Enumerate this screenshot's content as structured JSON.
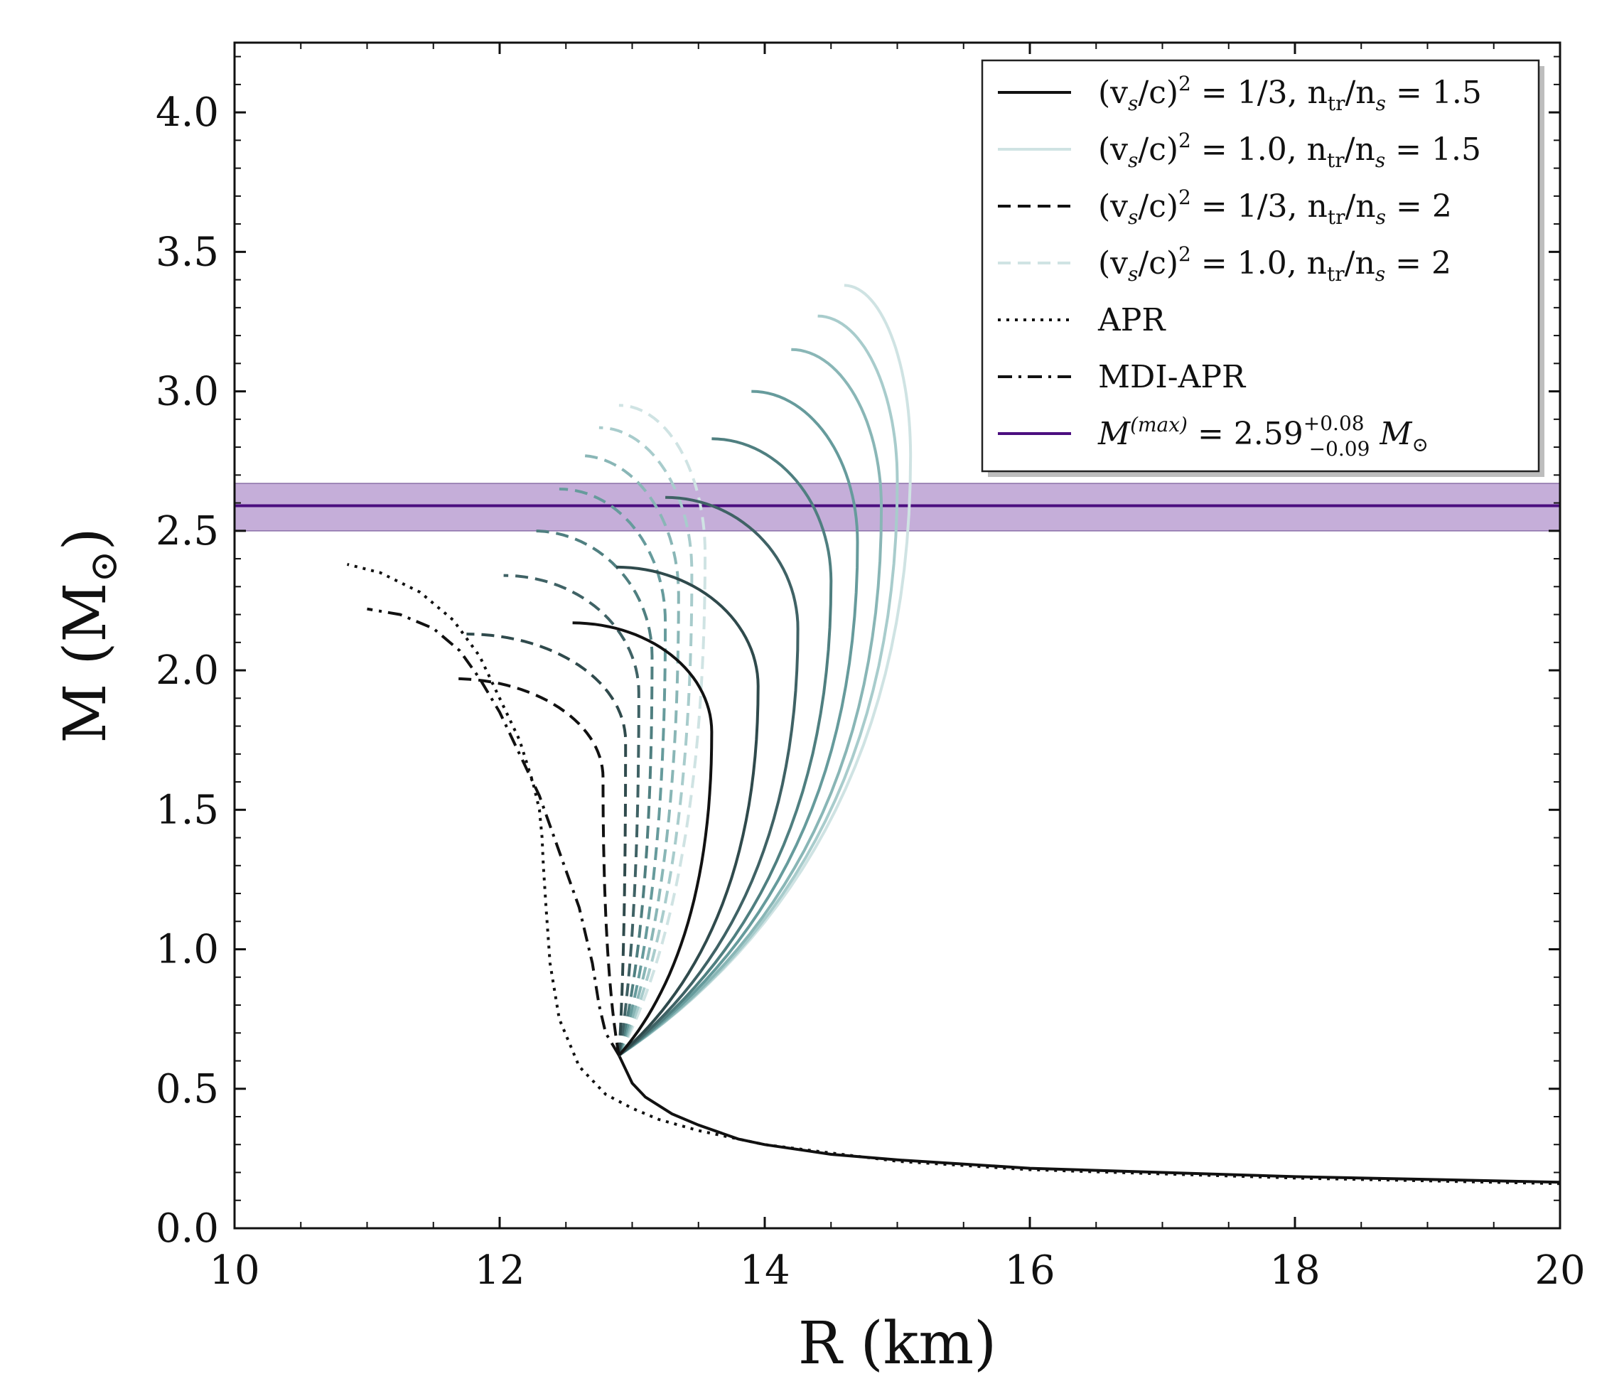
{
  "chart_data": {
    "type": "line",
    "xlabel": "R (km)",
    "ylabel": "M (M",
    "ylabel_sub": "⊙",
    "ylabel_close": ")",
    "xlim": [
      10,
      20
    ],
    "ylim": [
      0,
      4.25
    ],
    "xticks": [
      10,
      12,
      14,
      16,
      18,
      20
    ],
    "yticks": [
      0.0,
      0.5,
      1.0,
      1.5,
      2.0,
      2.5,
      3.0,
      3.5,
      4.0
    ],
    "xtick_labels": [
      "10",
      "12",
      "14",
      "16",
      "18",
      "20"
    ],
    "ytick_labels": [
      "0.0",
      "0.5",
      "1.0",
      "1.5",
      "2.0",
      "2.5",
      "3.0",
      "3.5",
      "4.0"
    ],
    "band": {
      "center": 2.59,
      "lower": 2.5,
      "upper": 2.67,
      "color": "#4b0e7f",
      "fill": "#c5aed9"
    },
    "crust": {
      "x": [
        20.0,
        18.0,
        16.0,
        15.0,
        14.5,
        14.0,
        13.8,
        13.5,
        13.3,
        13.1,
        13.0,
        12.95,
        12.9
      ],
      "y": [
        0.165,
        0.185,
        0.215,
        0.245,
        0.265,
        0.3,
        0.32,
        0.37,
        0.41,
        0.47,
        0.52,
        0.57,
        0.62
      ]
    },
    "families": [
      {
        "name": "(vs/c)^2=1/3, ntr/ns=1.5",
        "style": "solid",
        "color": "#111111",
        "Rturn": 13.6,
        "Rtop": 12.55,
        "Mmax": 2.17
      },
      {
        "name": "cs2-1.5-a",
        "style": "solid",
        "color": "#2f4a4c",
        "Rturn": 13.95,
        "Rtop": 12.88,
        "Mmax": 2.37
      },
      {
        "name": "cs2-1.5-b",
        "style": "solid",
        "color": "#3f6265",
        "Rturn": 14.25,
        "Rtop": 13.25,
        "Mmax": 2.62
      },
      {
        "name": "cs2-1.5-c",
        "style": "solid",
        "color": "#4f7f80",
        "Rturn": 14.5,
        "Rtop": 13.6,
        "Mmax": 2.83
      },
      {
        "name": "cs2-1.5-d",
        "style": "solid",
        "color": "#669b9c",
        "Rturn": 14.7,
        "Rtop": 13.9,
        "Mmax": 3.0
      },
      {
        "name": "cs2-1.5-e",
        "style": "solid",
        "color": "#89b6b6",
        "Rturn": 14.88,
        "Rtop": 14.2,
        "Mmax": 3.15
      },
      {
        "name": "cs2-1.5-f",
        "style": "solid",
        "color": "#a8cccc",
        "Rturn": 15.0,
        "Rtop": 14.4,
        "Mmax": 3.27
      },
      {
        "name": "(vs/c)^2=1.0, ntr/ns=1.5",
        "style": "solid",
        "color": "#cfe3e3",
        "Rturn": 15.1,
        "Rtop": 14.6,
        "Mmax": 3.38
      },
      {
        "name": "(vs/c)^2=1/3, ntr/ns=2",
        "style": "dashed",
        "color": "#111111",
        "Rturn": 12.78,
        "Rtop": 11.65,
        "Mmax": 1.97
      },
      {
        "name": "cs2-2-a",
        "style": "dashed",
        "color": "#2f4a4c",
        "Rturn": 12.95,
        "Rtop": 11.75,
        "Mmax": 2.13
      },
      {
        "name": "cs2-2-b",
        "style": "dashed",
        "color": "#3f6265",
        "Rturn": 13.05,
        "Rtop": 12.03,
        "Mmax": 2.34
      },
      {
        "name": "cs2-2-c",
        "style": "dashed",
        "color": "#4f7f80",
        "Rturn": 13.15,
        "Rtop": 12.25,
        "Mmax": 2.5
      },
      {
        "name": "cs2-2-d",
        "style": "dashed",
        "color": "#669b9c",
        "Rturn": 13.25,
        "Rtop": 12.45,
        "Mmax": 2.65
      },
      {
        "name": "cs2-2-e",
        "style": "dashed",
        "color": "#89b6b6",
        "Rturn": 13.35,
        "Rtop": 12.6,
        "Mmax": 2.77
      },
      {
        "name": "cs2-2-f",
        "style": "dashed",
        "color": "#a8cccc",
        "Rturn": 13.45,
        "Rtop": 12.75,
        "Mmax": 2.87
      },
      {
        "name": "(vs/c)^2=1.0, ntr/ns=2",
        "style": "dashed",
        "color": "#cfe3e3",
        "Rturn": 13.55,
        "Rtop": 12.9,
        "Mmax": 2.95
      }
    ],
    "apr": {
      "name": "APR",
      "style": "dotted",
      "color": "#111111",
      "x": [
        20.0,
        18.0,
        16.0,
        15.0,
        14.0,
        13.5,
        13.2,
        13.0,
        12.8,
        12.6,
        12.45,
        12.38,
        12.35,
        12.33,
        12.32,
        12.3,
        12.25,
        12.15,
        12.0,
        11.85,
        11.65,
        11.4,
        11.1,
        10.85
      ],
      "y": [
        0.16,
        0.18,
        0.21,
        0.24,
        0.3,
        0.35,
        0.39,
        0.43,
        0.48,
        0.58,
        0.75,
        0.95,
        1.15,
        1.3,
        1.4,
        1.5,
        1.6,
        1.75,
        1.9,
        2.05,
        2.18,
        2.28,
        2.35,
        2.38
      ]
    },
    "mdi": {
      "name": "MDI-APR",
      "style": "dashdot",
      "color": "#111111",
      "x": [
        12.9,
        12.8,
        12.75,
        12.7,
        12.6,
        12.45,
        12.3,
        12.15,
        12.0,
        11.85,
        11.7,
        11.5,
        11.25,
        11.0
      ],
      "y": [
        0.62,
        0.7,
        0.8,
        0.95,
        1.15,
        1.35,
        1.55,
        1.7,
        1.85,
        1.97,
        2.07,
        2.15,
        2.2,
        2.22
      ]
    },
    "legend": [
      {
        "style": "solid",
        "color": "#111111",
        "label": "(v",
        "sub1": "s",
        "mid": "/c)",
        "sup": "2",
        "rest": " = 1/3,   n",
        "sub2": "tr",
        "mid2": "/n",
        "sub3": "s",
        "end": " = 1.5"
      },
      {
        "style": "solid",
        "color": "#cfe3e3",
        "label": "(v",
        "sub1": "s",
        "mid": "/c)",
        "sup": "2",
        "rest": " = 1.0,   n",
        "sub2": "tr",
        "mid2": "/n",
        "sub3": "s",
        "end": " = 1.5"
      },
      {
        "style": "dashed",
        "color": "#111111",
        "label": "(v",
        "sub1": "s",
        "mid": "/c)",
        "sup": "2",
        "rest": " = 1/3,   n",
        "sub2": "tr",
        "mid2": "/n",
        "sub3": "s",
        "end": " = 2"
      },
      {
        "style": "dashed",
        "color": "#cfe3e3",
        "label": "(v",
        "sub1": "s",
        "mid": "/c)",
        "sup": "2",
        "rest": " = 1.0,   n",
        "sub2": "tr",
        "mid2": "/n",
        "sub3": "s",
        "end": " = 2"
      },
      {
        "style": "dotted",
        "color": "#111111",
        "plain": "APR"
      },
      {
        "style": "dashdot",
        "color": "#111111",
        "plain": "MDI-APR"
      },
      {
        "style": "solid",
        "color": "#4b0e7f",
        "mmax": true,
        "m": "M",
        "msup": "(max)",
        "eq": " = 2.59",
        "up": "+0.08",
        "down": "−0.09",
        "msun": "M",
        "msunsub": "⊙"
      }
    ]
  }
}
